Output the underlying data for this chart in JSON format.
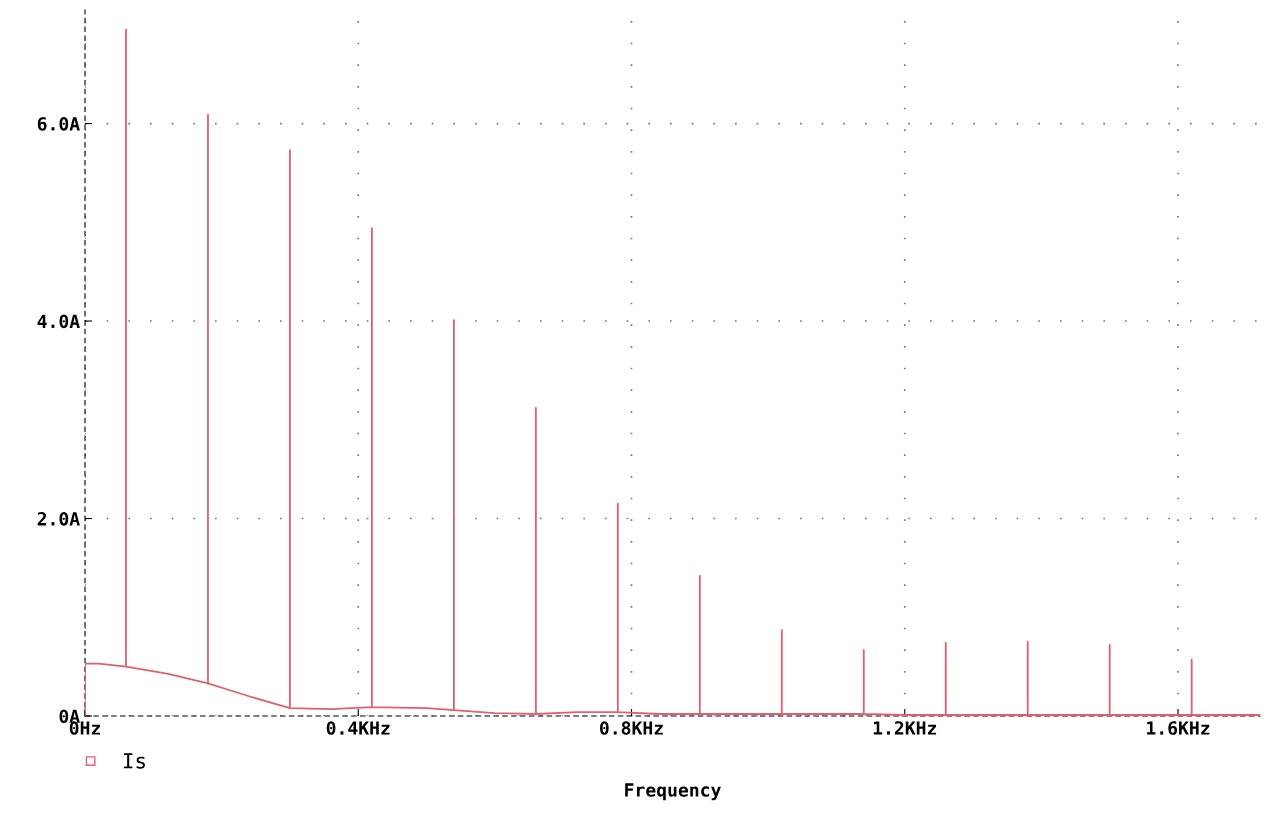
{
  "chart_data": {
    "type": "line",
    "xlabel": "Frequency",
    "series": [
      {
        "name": "Is",
        "color": "#e06070",
        "x": [
          0,
          0,
          0.02,
          0.06,
          0.06,
          0.06,
          0.12,
          0.18,
          0.18,
          0.18,
          0.24,
          0.3,
          0.3,
          0.3,
          0.36,
          0.42,
          0.42,
          0.42,
          0.5,
          0.54,
          0.54,
          0.54,
          0.6,
          0.66,
          0.66,
          0.66,
          0.72,
          0.78,
          0.78,
          0.78,
          0.84,
          0.9,
          0.9,
          0.9,
          1.02,
          1.02,
          1.02,
          1.14,
          1.14,
          1.14,
          1.2,
          1.26,
          1.26,
          1.26,
          1.38,
          1.38,
          1.38,
          1.5,
          1.5,
          1.5,
          1.62,
          1.62,
          1.62,
          1.72
        ],
        "values": [
          0,
          0.53,
          0.53,
          0.5,
          6.95,
          0.5,
          0.43,
          0.33,
          6.09,
          0.33,
          0.2,
          0.08,
          5.73,
          0.08,
          0.07,
          0.09,
          4.94,
          0.09,
          0.08,
          0.06,
          4.01,
          0.06,
          0.03,
          0.02,
          3.12,
          0.02,
          0.04,
          0.04,
          2.15,
          0.04,
          0.02,
          0.02,
          1.42,
          0.02,
          0.02,
          0.87,
          0.02,
          0.02,
          0.67,
          0.02,
          0.01,
          0.01,
          0.74,
          0.01,
          0.01,
          0.75,
          0.01,
          0.01,
          0.72,
          0.01,
          0.01,
          0.57,
          0.01,
          0.01
        ]
      }
    ],
    "xlim": [
      0,
      1.72
    ],
    "ylim": [
      0,
      7.15
    ],
    "xticks": [
      {
        "value": 0,
        "label": "0Hz"
      },
      {
        "value": 0.4,
        "label": "0.4KHz"
      },
      {
        "value": 0.8,
        "label": "0.8KHz"
      },
      {
        "value": 1.2,
        "label": "1.2KHz"
      },
      {
        "value": 1.6,
        "label": "1.6KHz"
      }
    ],
    "yticks": [
      {
        "value": 0,
        "label": "0A"
      },
      {
        "value": 2,
        "label": "2.0A"
      },
      {
        "value": 4,
        "label": "4.0A"
      },
      {
        "value": 6,
        "label": "6.0A"
      }
    ],
    "grid": true,
    "legend": "bottom left",
    "marker": "none",
    "line_style": "solid"
  }
}
